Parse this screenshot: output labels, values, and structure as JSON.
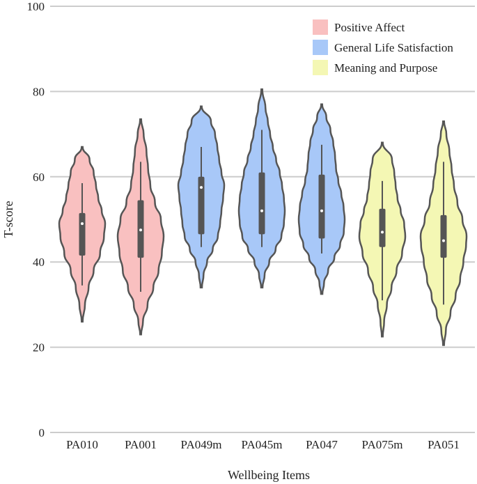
{
  "chart_data": {
    "type": "violin",
    "xlabel": "Wellbeing Items",
    "ylabel": "T-score",
    "ylim": [
      0,
      100
    ],
    "yticks": [
      0,
      20,
      40,
      60,
      80,
      100
    ],
    "grid": true,
    "legend_position": "top-right",
    "groups": [
      {
        "name": "Positive Affect",
        "color": "#f9c0c0"
      },
      {
        "name": "General Life Satisfaction",
        "color": "#a8c8f8"
      },
      {
        "name": "Meaning and Purpose",
        "color": "#f4f7b4"
      }
    ],
    "categories": [
      "PA010",
      "PA001",
      "PA049m",
      "PA045m",
      "PA047",
      "PA075m",
      "PA051"
    ],
    "items": [
      {
        "label": "PA010",
        "group": 0,
        "min": 26,
        "max": 67,
        "whisker_low": 34.5,
        "whisker_high": 58.5,
        "q1": 41.5,
        "q3": 51.5,
        "median": 49,
        "density": [
          [
            26,
            0.02
          ],
          [
            30,
            0.12
          ],
          [
            34,
            0.28
          ],
          [
            38,
            0.5
          ],
          [
            42,
            0.78
          ],
          [
            46,
            0.95
          ],
          [
            49,
            1.0
          ],
          [
            52,
            0.85
          ],
          [
            55,
            0.7
          ],
          [
            58,
            0.6
          ],
          [
            61,
            0.5
          ],
          [
            64,
            0.32
          ],
          [
            67,
            0.02
          ]
        ]
      },
      {
        "label": "PA001",
        "group": 0,
        "min": 23,
        "max": 73.5,
        "whisker_low": 33,
        "whisker_high": 63.5,
        "q1": 41,
        "q3": 54.5,
        "median": 47.5,
        "density": [
          [
            23,
            0.02
          ],
          [
            26,
            0.1
          ],
          [
            30,
            0.3
          ],
          [
            34,
            0.55
          ],
          [
            38,
            0.78
          ],
          [
            42,
            0.92
          ],
          [
            46,
            1.0
          ],
          [
            50,
            0.88
          ],
          [
            54,
            0.62
          ],
          [
            58,
            0.42
          ],
          [
            62,
            0.32
          ],
          [
            66,
            0.25
          ],
          [
            70,
            0.13
          ],
          [
            73.5,
            0.02
          ]
        ]
      },
      {
        "label": "PA049m",
        "group": 1,
        "min": 34,
        "max": 76.5,
        "whisker_low": 43.5,
        "whisker_high": 67,
        "q1": 46.5,
        "q3": 60,
        "median": 57.5,
        "density": [
          [
            34,
            0.03
          ],
          [
            37,
            0.1
          ],
          [
            40,
            0.25
          ],
          [
            43,
            0.5
          ],
          [
            46,
            0.72
          ],
          [
            49,
            0.82
          ],
          [
            52,
            0.88
          ],
          [
            55,
            0.95
          ],
          [
            58,
            1.0
          ],
          [
            61,
            0.88
          ],
          [
            64,
            0.78
          ],
          [
            67,
            0.7
          ],
          [
            70,
            0.6
          ],
          [
            73,
            0.42
          ],
          [
            76.5,
            0.02
          ]
        ]
      },
      {
        "label": "PA045m",
        "group": 1,
        "min": 34,
        "max": 80.5,
        "whisker_low": 43.5,
        "whisker_high": 71,
        "q1": 46.5,
        "q3": 61,
        "median": 52,
        "density": [
          [
            34,
            0.03
          ],
          [
            37,
            0.12
          ],
          [
            40,
            0.32
          ],
          [
            43,
            0.6
          ],
          [
            46,
            0.85
          ],
          [
            49,
            0.96
          ],
          [
            52,
            1.0
          ],
          [
            55,
            0.96
          ],
          [
            58,
            0.88
          ],
          [
            61,
            0.78
          ],
          [
            64,
            0.62
          ],
          [
            67,
            0.48
          ],
          [
            70,
            0.36
          ],
          [
            73,
            0.26
          ],
          [
            76,
            0.16
          ],
          [
            80.5,
            0.02
          ]
        ]
      },
      {
        "label": "PA047",
        "group": 1,
        "min": 32.5,
        "max": 77,
        "whisker_low": 42,
        "whisker_high": 67.5,
        "q1": 45.5,
        "q3": 60.5,
        "median": 52,
        "density": [
          [
            32.5,
            0.03
          ],
          [
            35,
            0.1
          ],
          [
            38,
            0.28
          ],
          [
            41,
            0.55
          ],
          [
            44,
            0.8
          ],
          [
            47,
            0.96
          ],
          [
            50,
            1.0
          ],
          [
            53,
            0.95
          ],
          [
            56,
            0.85
          ],
          [
            59,
            0.72
          ],
          [
            62,
            0.62
          ],
          [
            65,
            0.58
          ],
          [
            68,
            0.5
          ],
          [
            71,
            0.38
          ],
          [
            74,
            0.2
          ],
          [
            77,
            0.02
          ]
        ]
      },
      {
        "label": "PA075m",
        "group": 2,
        "min": 22.5,
        "max": 68,
        "whisker_low": 31,
        "whisker_high": 59,
        "q1": 43.5,
        "q3": 52.5,
        "median": 47,
        "density": [
          [
            22.5,
            0.02
          ],
          [
            26,
            0.08
          ],
          [
            30,
            0.2
          ],
          [
            34,
            0.4
          ],
          [
            38,
            0.62
          ],
          [
            42,
            0.86
          ],
          [
            46,
            1.0
          ],
          [
            49,
            0.95
          ],
          [
            52,
            0.8
          ],
          [
            55,
            0.66
          ],
          [
            58,
            0.58
          ],
          [
            61,
            0.52
          ],
          [
            64,
            0.42
          ],
          [
            68,
            0.02
          ]
        ]
      },
      {
        "label": "PA051",
        "group": 2,
        "min": 20.5,
        "max": 73,
        "whisker_low": 30,
        "whisker_high": 63.5,
        "q1": 41,
        "q3": 51,
        "median": 45,
        "density": [
          [
            20.5,
            0.02
          ],
          [
            24,
            0.1
          ],
          [
            28,
            0.3
          ],
          [
            32,
            0.52
          ],
          [
            36,
            0.72
          ],
          [
            40,
            0.86
          ],
          [
            44,
            0.98
          ],
          [
            46,
            1.0
          ],
          [
            50,
            0.82
          ],
          [
            54,
            0.6
          ],
          [
            58,
            0.45
          ],
          [
            62,
            0.35
          ],
          [
            66,
            0.25
          ],
          [
            70,
            0.12
          ],
          [
            73,
            0.02
          ]
        ]
      }
    ]
  }
}
